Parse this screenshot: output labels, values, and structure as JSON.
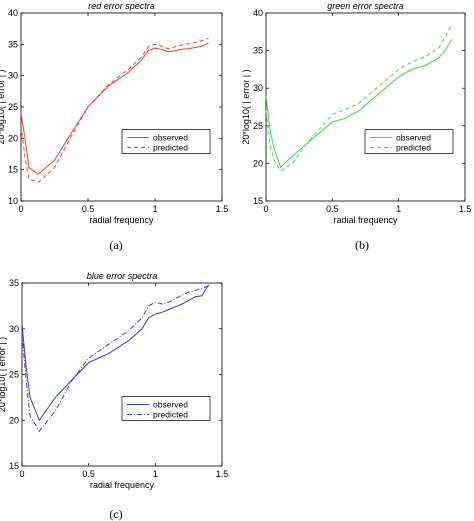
{
  "chart_data": [
    {
      "panel": "(a)",
      "type": "line",
      "title": "red error spectra",
      "xlabel": "radial frequency",
      "ylabel": "20*log10( | error | )",
      "xlim": [
        0,
        1.5
      ],
      "ylim": [
        10,
        40
      ],
      "xticks": [
        "0",
        "0.5",
        "1",
        "1.5"
      ],
      "yticks": [
        "10",
        "15",
        "20",
        "25",
        "30",
        "35",
        "40"
      ],
      "color": "#e8413c",
      "grid": false,
      "legend": "center-right",
      "series": [
        {
          "name": "observed",
          "style": "solid",
          "x": [
            0,
            0.03,
            0.06,
            0.13,
            0.25,
            0.38,
            0.5,
            0.65,
            0.8,
            0.9,
            0.95,
            1.0,
            1.05,
            1.1,
            1.15,
            1.2,
            1.25,
            1.3,
            1.35,
            1.4
          ],
          "y": [
            24,
            20,
            15.3,
            14.3,
            16.5,
            21,
            25,
            28.3,
            30.5,
            32.5,
            34,
            34.4,
            34.2,
            33.8,
            34,
            34.2,
            34.3,
            34.5,
            34.7,
            35.2
          ]
        },
        {
          "name": "predicted",
          "style": "dashed",
          "x": [
            0,
            0.03,
            0.06,
            0.13,
            0.25,
            0.38,
            0.5,
            0.65,
            0.8,
            0.9,
            0.95,
            1.0,
            1.05,
            1.1,
            1.15,
            1.2,
            1.25,
            1.3,
            1.35,
            1.4
          ],
          "y": [
            22,
            17,
            13.5,
            13,
            15.3,
            20.5,
            25,
            28.5,
            31,
            33,
            34.6,
            35,
            34.7,
            34.3,
            34.6,
            34.9,
            35.1,
            35.3,
            35.6,
            36
          ]
        }
      ]
    },
    {
      "panel": "(b)",
      "type": "line",
      "title": "green error spectra",
      "xlabel": "radial frequency",
      "ylabel": "20*log10( | error | )",
      "xlim": [
        0,
        1.5
      ],
      "ylim": [
        15,
        40
      ],
      "xticks": [
        "0",
        "0.5",
        "1",
        "1.5"
      ],
      "yticks": [
        "15",
        "20",
        "25",
        "30",
        "35",
        "40"
      ],
      "color": "#3dd93d",
      "grid": false,
      "legend": "center-right",
      "series": [
        {
          "name": "observed",
          "style": "solid",
          "x": [
            0,
            0.03,
            0.06,
            0.11,
            0.2,
            0.3,
            0.4,
            0.5,
            0.6,
            0.7,
            0.8,
            0.9,
            1.0,
            1.1,
            1.2,
            1.3,
            1.35,
            1.4
          ],
          "y": [
            29,
            24.5,
            22,
            19.5,
            21,
            22.5,
            24,
            25.5,
            26,
            27,
            28.5,
            30,
            31.5,
            32.5,
            33,
            34,
            35,
            36.5
          ]
        },
        {
          "name": "predicted",
          "style": "dashed",
          "x": [
            0,
            0.03,
            0.06,
            0.11,
            0.2,
            0.3,
            0.4,
            0.5,
            0.6,
            0.7,
            0.8,
            0.9,
            1.0,
            1.1,
            1.2,
            1.3,
            1.35,
            1.4
          ],
          "y": [
            27,
            22.5,
            20.5,
            19,
            20,
            22.5,
            24.5,
            26.5,
            27.2,
            28,
            29.5,
            31,
            32.5,
            33.5,
            34.2,
            35.3,
            36.8,
            38.5
          ]
        }
      ]
    },
    {
      "panel": "(c)",
      "type": "line",
      "title": "blue error spectra",
      "xlabel": "radial frequency",
      "ylabel": "20*log10( | error | )",
      "xlim": [
        0,
        1.5
      ],
      "ylim": [
        15,
        35
      ],
      "xticks": [
        "0",
        "0.5",
        "1",
        "1.5"
      ],
      "yticks": [
        "15",
        "20",
        "25",
        "30",
        "35"
      ],
      "color": "#3a3ad0",
      "grid": false,
      "legend": "center-right",
      "series": [
        {
          "name": "observed",
          "style": "solid",
          "x": [
            0,
            0.03,
            0.06,
            0.13,
            0.25,
            0.38,
            0.5,
            0.65,
            0.8,
            0.9,
            0.95,
            1.0,
            1.05,
            1.1,
            1.15,
            1.2,
            1.25,
            1.3,
            1.35,
            1.4
          ],
          "y": [
            30.5,
            26,
            22.5,
            20,
            22.5,
            24.5,
            26.3,
            27.3,
            28.7,
            30,
            31.2,
            31.6,
            31.8,
            32.1,
            32.4,
            32.7,
            33.1,
            33.5,
            33.6,
            34.8
          ]
        },
        {
          "name": "predicted",
          "style": "dashdot",
          "x": [
            0,
            0.03,
            0.06,
            0.13,
            0.25,
            0.38,
            0.5,
            0.65,
            0.8,
            0.9,
            0.95,
            1.0,
            1.05,
            1.1,
            1.15,
            1.2,
            1.25,
            1.3,
            1.35,
            1.4
          ],
          "y": [
            29.5,
            24.5,
            20.5,
            18.8,
            21,
            24.5,
            26.8,
            28.3,
            29.8,
            31.2,
            32.5,
            32.9,
            32.7,
            32.9,
            33.3,
            33.7,
            34,
            34.2,
            34.4,
            34.7
          ]
        }
      ]
    }
  ],
  "captions": [
    "(a)",
    "(b)",
    "(c)"
  ]
}
